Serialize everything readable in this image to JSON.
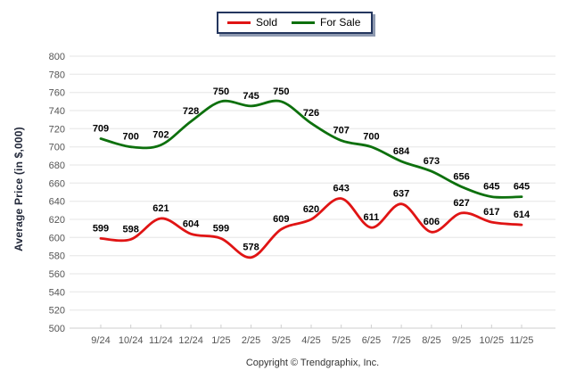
{
  "legend": {
    "items": [
      {
        "label": "Sold"
      },
      {
        "label": "For Sale"
      }
    ]
  },
  "y_axis_title": "Average Price (in $,000)",
  "footer": {
    "copyright": "Copyright © Trendgraphix, Inc."
  },
  "chart_data": {
    "type": "line",
    "title": "",
    "xlabel": "",
    "ylabel": "Average Price (in $,000)",
    "categories": [
      "9/24",
      "10/24",
      "11/24",
      "12/24",
      "1/25",
      "2/25",
      "3/25",
      "4/25",
      "5/25",
      "6/25",
      "7/25",
      "8/25",
      "9/25",
      "10/25",
      "11/25"
    ],
    "series": [
      {
        "name": "Sold",
        "color": "#E01414",
        "values": [
          599,
          598,
          621,
          604,
          599,
          578,
          609,
          620,
          643,
          611,
          637,
          606,
          627,
          617,
          614
        ]
      },
      {
        "name": "For Sale",
        "color": "#0D700D",
        "values": [
          709,
          700,
          702,
          728,
          750,
          745,
          750,
          726,
          707,
          700,
          684,
          673,
          656,
          645,
          645
        ]
      }
    ],
    "ylim": [
      500,
      800
    ],
    "ytick_step": 20,
    "grid": true,
    "data_labels": true,
    "legend_position": "top-center",
    "grid_color": "#E6E6E6",
    "baseline_color": "#CFCFCF",
    "tick_label_color": "#555555",
    "data_label_color": "#000000"
  }
}
